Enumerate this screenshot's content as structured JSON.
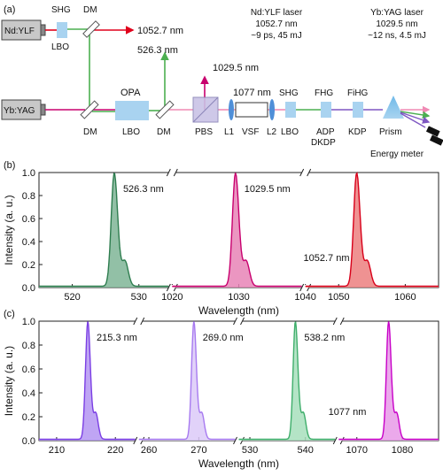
{
  "panel_labels": {
    "a": "(a)",
    "b": "(b)",
    "c": "(c)"
  },
  "setup": {
    "laser1": "Nd:YLF",
    "laser2": "Yb:YAG",
    "shg_top": "SHG",
    "lbo_top": "LBO",
    "dm_top": "DM",
    "out_1052": "1052.7 nm",
    "out_526": "526.3 nm",
    "out_1029": "1029.5 nm",
    "dm_bottom_left": "DM",
    "opa": "OPA",
    "lbo_opa": "LBO",
    "dm_bottom_mid": "DM",
    "pbs": "PBS",
    "l1": "L1",
    "vsf_wave": "1077 nm",
    "vsf": "VSF",
    "l2": "L2",
    "shg2": "SHG",
    "lbo2": "LBO",
    "fhg": "FHG",
    "adp": "ADP",
    "dkdp": "DKDP",
    "fihg": "FiHG",
    "kdp": "KDP",
    "prism": "Prism",
    "energy_meter": "Energy meter",
    "ndylf_info": [
      "Nd:YLF laser",
      "1052.7 nm",
      "~9 ps, 45 mJ"
    ],
    "ybyag_info": [
      "Yb:YAG laser",
      "1029.5 nm",
      "~12 ns, 4.5 mJ"
    ],
    "colors": {
      "green": "#4caf50",
      "red": "#e0001b",
      "magenta": "#c8006e",
      "pink": "#f08ab4",
      "purple": "#7e57c2",
      "box": "#a9d3f0"
    }
  },
  "chart_data": [
    {
      "type": "area",
      "panel": "b",
      "ylabel": "Intensity (a. u.)",
      "xlabel": "Wavelength (nm)",
      "ylim": [
        0,
        1.0
      ],
      "yticks": [
        "0.0",
        "0.2",
        "0.4",
        "0.6",
        "0.8",
        "1.0"
      ],
      "segments": [
        {
          "xlim": [
            515,
            535
          ],
          "ticks": [
            "520",
            "530"
          ]
        },
        {
          "xlim": [
            1020,
            1040
          ],
          "ticks": [
            "1020",
            "1030",
            "1040"
          ]
        },
        {
          "xlim": [
            1045,
            1065
          ],
          "ticks": [
            "1050",
            "1060"
          ]
        }
      ],
      "series": [
        {
          "peak": 526.3,
          "label": "526.3 nm",
          "color": "#2e7d4f",
          "fill": "#7fb596"
        },
        {
          "peak": 1029.5,
          "label": "1029.5 nm",
          "color": "#c8006e",
          "fill": "#e884b6"
        },
        {
          "peak": 1052.7,
          "label": "1052.7 nm",
          "color": "#d8001a",
          "fill": "#ec7f7f"
        }
      ]
    },
    {
      "type": "area",
      "panel": "c",
      "ylabel": "Intensity (a. u.)",
      "xlabel": "Wavelength (nm)",
      "ylim": [
        0,
        1.0
      ],
      "yticks": [
        "0.0",
        "0.2",
        "0.4",
        "0.6",
        "0.8",
        "1.0"
      ],
      "segments": [
        {
          "xlim": [
            207,
            224
          ],
          "ticks": [
            "210",
            "220"
          ]
        },
        {
          "xlim": [
            258,
            278
          ],
          "ticks": [
            "260",
            "270"
          ]
        },
        {
          "xlim": [
            528,
            546
          ],
          "ticks": [
            "530",
            "540"
          ]
        },
        {
          "xlim": [
            1066,
            1088
          ],
          "ticks": [
            "1070",
            "1080"
          ]
        }
      ],
      "series": [
        {
          "peak": 215.3,
          "label": "215.3 nm",
          "color": "#7b3fe4",
          "fill": "#b495f2"
        },
        {
          "peak": 269.0,
          "label": "269.0 nm",
          "color": "#a77af0",
          "fill": "#dccaf8"
        },
        {
          "peak": 538.2,
          "label": "538.2 nm",
          "color": "#3fae6b",
          "fill": "#a7dfbc"
        },
        {
          "peak": 1077,
          "label": "1077 nm",
          "color": "#c800c8",
          "fill": "#e89ae8"
        }
      ]
    }
  ]
}
